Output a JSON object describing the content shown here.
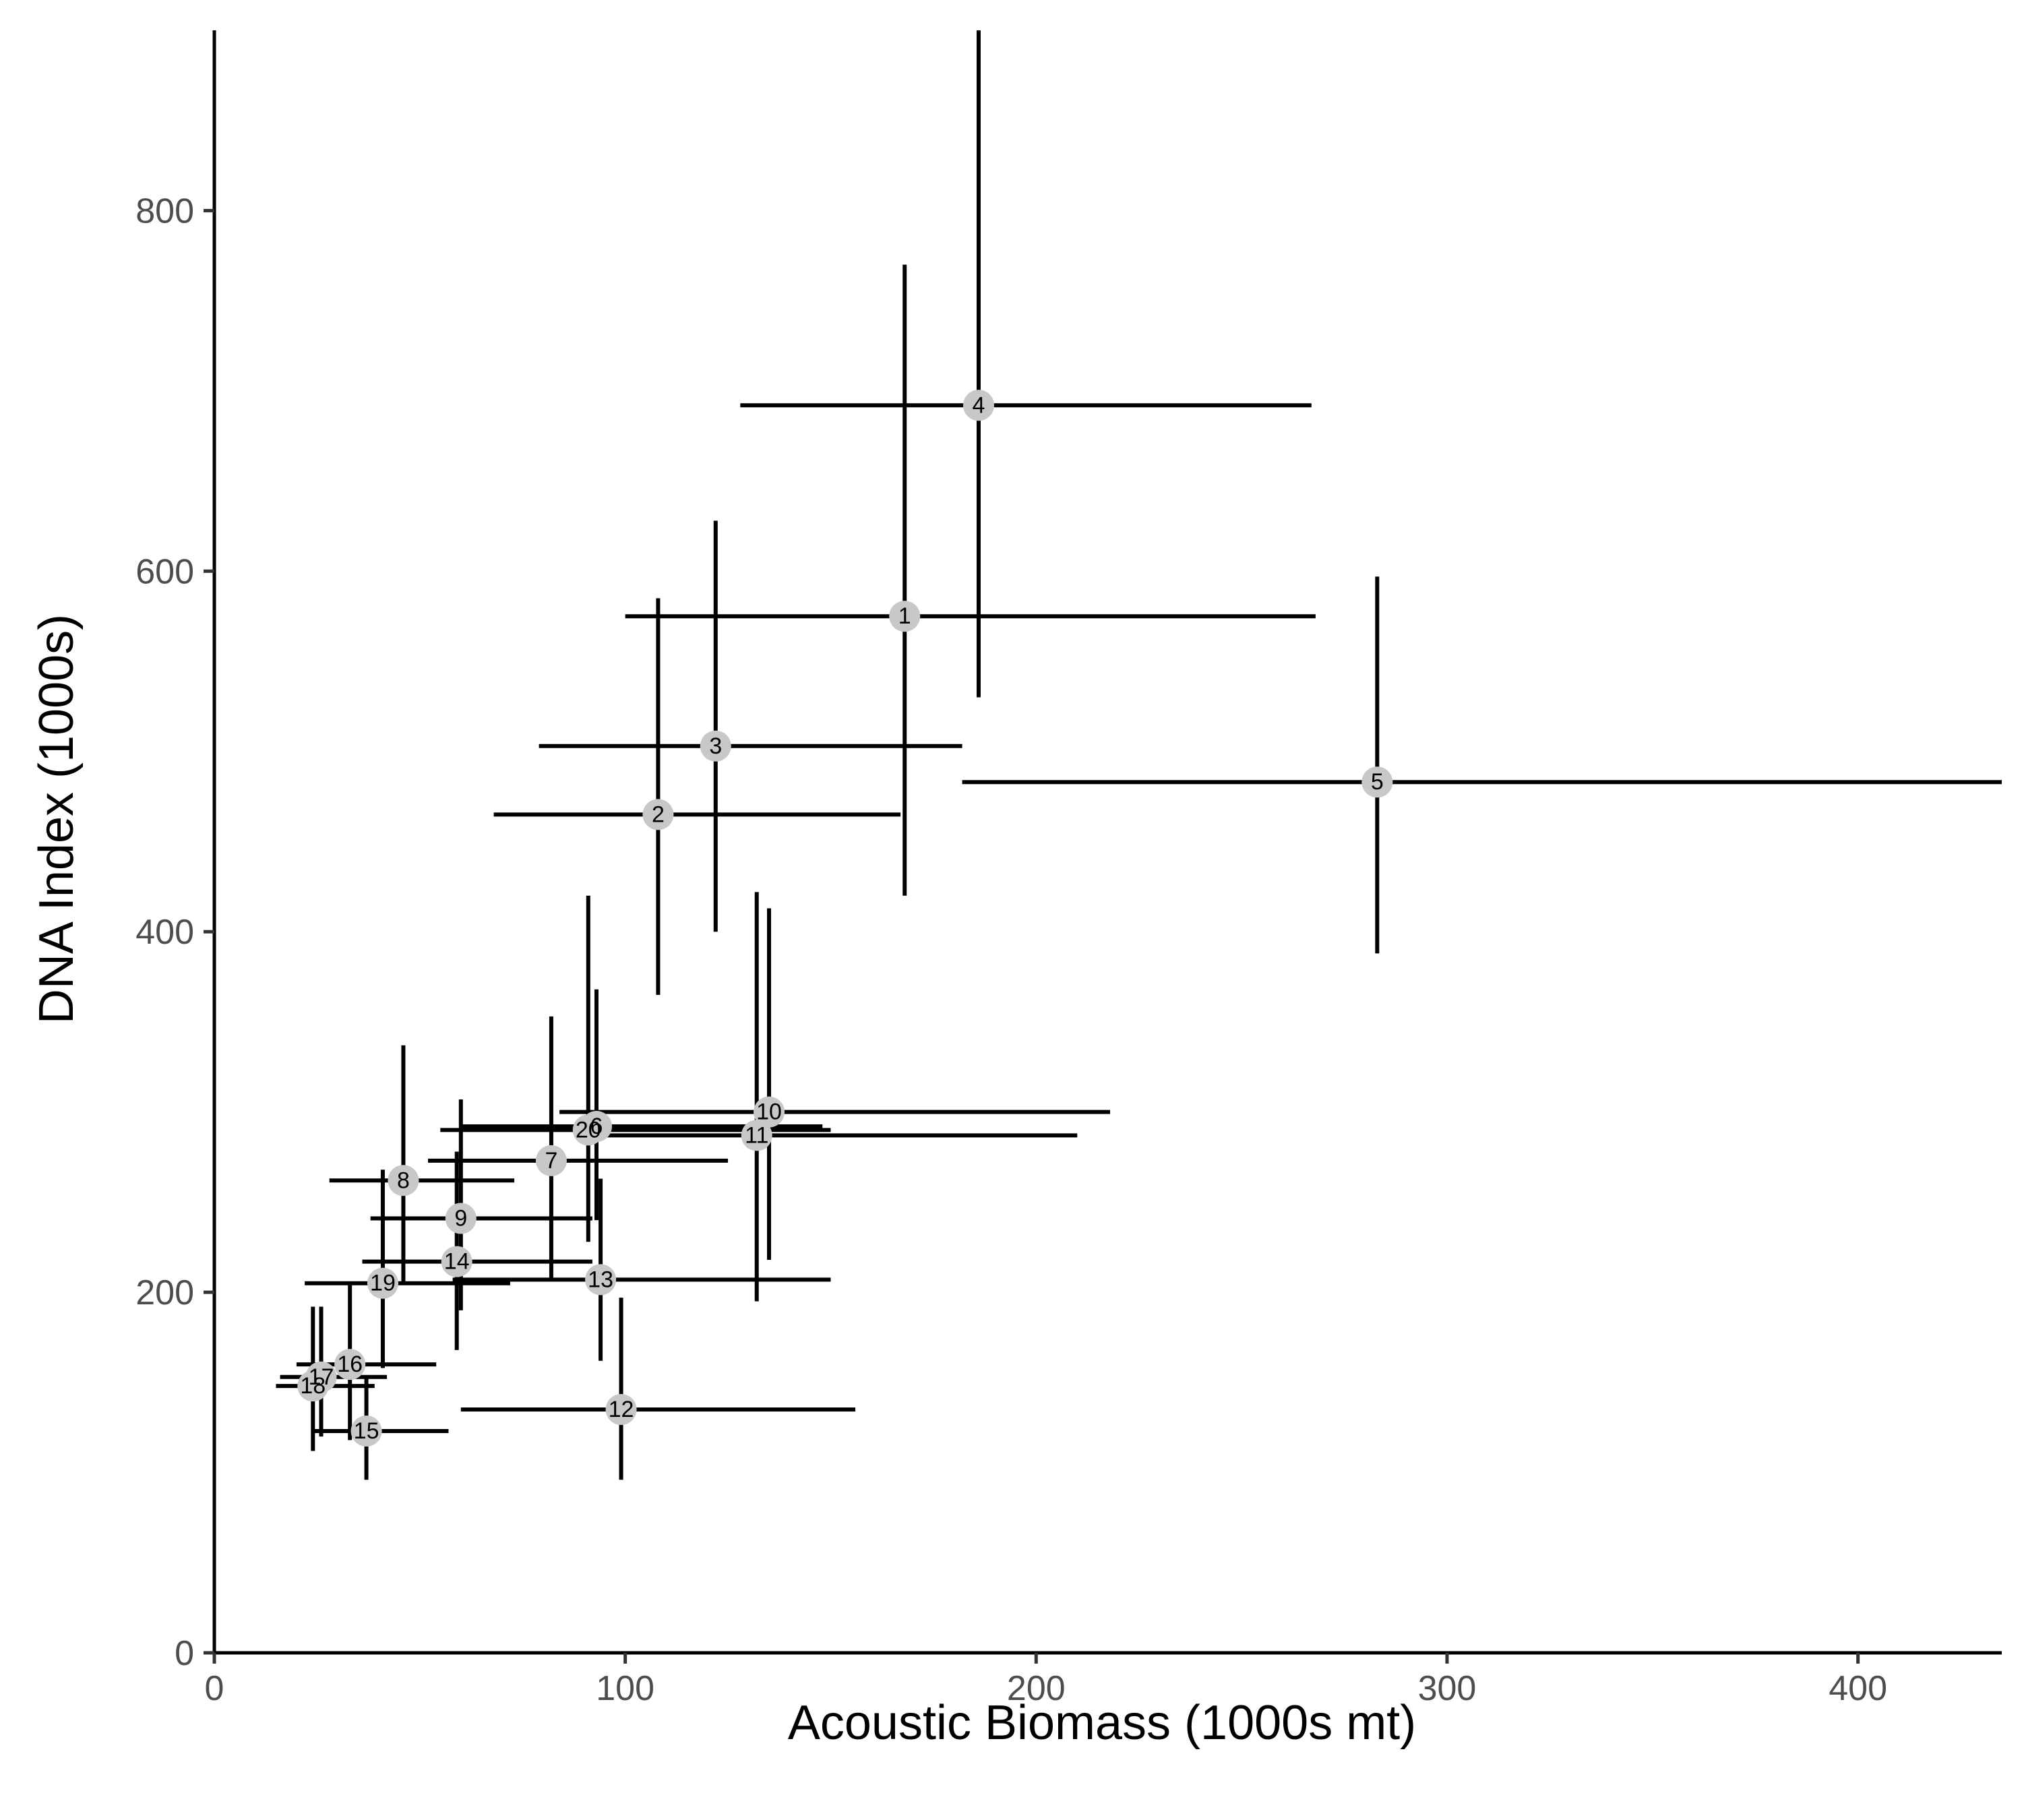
{
  "chart_data": {
    "type": "scatter",
    "title": "",
    "xlabel": "Acoustic Biomass (1000s mt)",
    "ylabel": "DNA Index (1000s)",
    "xlim": [
      0,
      435
    ],
    "ylim": [
      0,
      900
    ],
    "x_ticks": [
      "0",
      "100",
      "200",
      "300",
      "400"
    ],
    "y_ticks": [
      "0",
      "200",
      "400",
      "600",
      "800"
    ],
    "grid": false,
    "legend": "none",
    "colors": {
      "point": "#c8c8c8",
      "errorbar": "#000000",
      "axis": "#000000",
      "tick_label": "#4d4d4d"
    },
    "points": [
      {
        "label": "1",
        "x": 168,
        "y": 575,
        "x_low": 100,
        "x_high": 268,
        "y_low": 420,
        "y_high": 770
      },
      {
        "label": "2",
        "x": 108,
        "y": 465,
        "x_low": 68,
        "x_high": 167,
        "y_low": 365,
        "y_high": 585
      },
      {
        "label": "3",
        "x": 122,
        "y": 503,
        "x_low": 79,
        "x_high": 182,
        "y_low": 400,
        "y_high": 628
      },
      {
        "label": "4",
        "x": 186,
        "y": 692,
        "x_low": 128,
        "x_high": 267,
        "y_low": 530,
        "y_high": 900
      },
      {
        "label": "5",
        "x": 283,
        "y": 483,
        "x_low": 182,
        "x_high": 435,
        "y_low": 388,
        "y_high": 597
      },
      {
        "label": "6",
        "x": 93,
        "y": 292,
        "x_low": 60,
        "x_high": 148,
        "y_low": 240,
        "y_high": 368
      },
      {
        "label": "7",
        "x": 82,
        "y": 273,
        "x_low": 52,
        "x_high": 125,
        "y_low": 208,
        "y_high": 353
      },
      {
        "label": "8",
        "x": 46,
        "y": 262,
        "x_low": 28,
        "x_high": 73,
        "y_low": 205,
        "y_high": 337
      },
      {
        "label": "9",
        "x": 60,
        "y": 241,
        "x_low": 38,
        "x_high": 92,
        "y_low": 190,
        "y_high": 307
      },
      {
        "label": "10",
        "x": 135,
        "y": 300,
        "x_low": 84,
        "x_high": 218,
        "y_low": 218,
        "y_high": 413
      },
      {
        "label": "11",
        "x": 132,
        "y": 287,
        "x_low": 88,
        "x_high": 210,
        "y_low": 195,
        "y_high": 422
      },
      {
        "label": "12",
        "x": 99,
        "y": 135,
        "x_low": 60,
        "x_high": 156,
        "y_low": 96,
        "y_high": 197
      },
      {
        "label": "13",
        "x": 94,
        "y": 207,
        "x_low": 58,
        "x_high": 150,
        "y_low": 162,
        "y_high": 263
      },
      {
        "label": "14",
        "x": 59,
        "y": 217,
        "x_low": 36,
        "x_high": 92,
        "y_low": 168,
        "y_high": 278
      },
      {
        "label": "15",
        "x": 37,
        "y": 123,
        "x_low": 24,
        "x_high": 57,
        "y_low": 96,
        "y_high": 153
      },
      {
        "label": "16",
        "x": 33,
        "y": 160,
        "x_low": 20,
        "x_high": 54,
        "y_low": 118,
        "y_high": 205
      },
      {
        "label": "17",
        "x": 26,
        "y": 153,
        "x_low": 16,
        "x_high": 42,
        "y_low": 120,
        "y_high": 192
      },
      {
        "label": "18",
        "x": 24,
        "y": 148,
        "x_low": 15,
        "x_high": 39,
        "y_low": 112,
        "y_high": 192
      },
      {
        "label": "19",
        "x": 41,
        "y": 205,
        "x_low": 22,
        "x_high": 72,
        "y_low": 158,
        "y_high": 268
      },
      {
        "label": "20",
        "x": 91,
        "y": 290,
        "x_low": 55,
        "x_high": 150,
        "y_low": 228,
        "y_high": 420
      }
    ]
  }
}
